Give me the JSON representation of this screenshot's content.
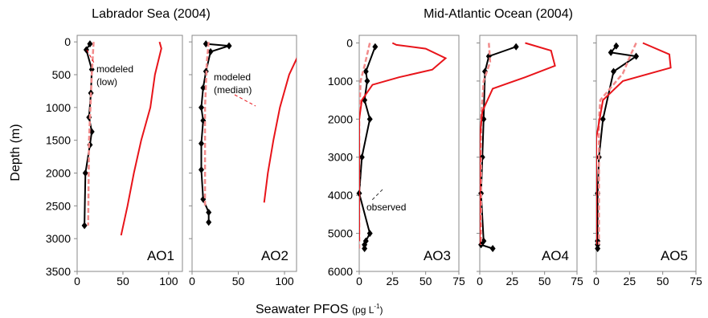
{
  "chart_data": [
    {
      "type": "line",
      "label": "AO1",
      "xlim": [
        0,
        115
      ],
      "ylim": [
        -100,
        3500
      ],
      "y_inverted": true,
      "xticks": [
        0,
        50,
        100
      ],
      "yticks": [
        0,
        500,
        1000,
        1500,
        2000,
        2500,
        3000,
        3500
      ],
      "show_yticklabels": true,
      "series": [
        {
          "name": "observed",
          "color": "#000000",
          "markers": true,
          "x": [
            14,
            10,
            16,
            15,
            13,
            16,
            14,
            9,
            8
          ],
          "y": [
            30,
            120,
            420,
            780,
            1150,
            1370,
            1570,
            2000,
            2800
          ]
        },
        {
          "name": "modeled (low)",
          "color": "#f28b8b",
          "dashed": true,
          "x": [
            18,
            16,
            13,
            12
          ],
          "y": [
            0,
            500,
            1500,
            2800
          ]
        },
        {
          "name": "modeled (median)",
          "color": "#e8141a",
          "x": [
            90,
            92,
            85,
            80,
            70,
            62,
            55,
            48
          ],
          "y": [
            0,
            100,
            500,
            1000,
            1500,
            2000,
            2500,
            2950
          ]
        }
      ],
      "annotation": {
        "lines": [
          "modeled",
          "(low)"
        ],
        "color": "#e8141a"
      }
    },
    {
      "type": "line",
      "label": "AO2",
      "xlim": [
        0,
        113
      ],
      "ylim": [
        -100,
        3500
      ],
      "y_inverted": true,
      "xticks": [
        0,
        50,
        100
      ],
      "yticks": [
        0,
        500,
        1000,
        1500,
        2000,
        2500,
        3000,
        3500
      ],
      "show_yticklabels": false,
      "series": [
        {
          "name": "observed",
          "color": "#000000",
          "markers": true,
          "x": [
            15,
            40,
            20,
            15,
            12,
            10,
            12,
            10,
            10,
            12,
            18,
            18
          ],
          "y": [
            30,
            60,
            150,
            450,
            700,
            1000,
            1200,
            1550,
            1950,
            2400,
            2600,
            2750
          ]
        },
        {
          "name": "modeled (low)",
          "color": "#f28b8b",
          "dashed": true,
          "x": [
            18,
            16,
            14,
            14
          ],
          "y": [
            0,
            300,
            1000,
            2500
          ]
        },
        {
          "name": "modeled (median)",
          "color": "#e8141a",
          "x": [
            118,
            115,
            105,
            95,
            88,
            82,
            78
          ],
          "y": [
            0,
            200,
            500,
            1000,
            1500,
            2000,
            2450
          ]
        }
      ],
      "annotation": {
        "lines": [
          "modeled",
          "(median)"
        ],
        "color": "#e8141a"
      }
    },
    {
      "type": "line",
      "label": "AO3",
      "xlim": [
        0,
        75
      ],
      "ylim": [
        -200,
        6000
      ],
      "y_inverted": true,
      "xticks": [
        0,
        25,
        50,
        75
      ],
      "yticks": [
        0,
        1000,
        2000,
        3000,
        4000,
        5000,
        6000
      ],
      "show_yticklabels": true,
      "series": [
        {
          "name": "observed",
          "color": "#000000",
          "markers": true,
          "x": [
            12,
            5,
            6,
            4,
            8,
            2,
            0,
            8,
            5,
            4,
            4
          ],
          "y": [
            100,
            750,
            1000,
            1500,
            2000,
            3000,
            3950,
            5000,
            5200,
            5300,
            5400
          ]
        },
        {
          "name": "modeled (low)",
          "color": "#f28b8b",
          "dashed": true,
          "x": [
            8,
            4,
            1,
            0,
            0
          ],
          "y": [
            0,
            600,
            1000,
            2000,
            5400
          ]
        },
        {
          "name": "modeled (median)",
          "color": "#e8141a",
          "x": [
            25,
            28,
            50,
            65,
            55,
            30,
            10,
            2,
            0,
            0
          ],
          "y": [
            0,
            50,
            150,
            400,
            700,
            900,
            1100,
            1500,
            2000,
            5200
          ]
        }
      ],
      "annotation": {
        "lines": [
          "observed"
        ],
        "color": "#333333"
      }
    },
    {
      "type": "line",
      "label": "AO4",
      "xlim": [
        0,
        75
      ],
      "ylim": [
        -200,
        6000
      ],
      "y_inverted": true,
      "xticks": [
        0,
        25,
        50,
        75
      ],
      "yticks": [
        0,
        1000,
        2000,
        3000,
        4000,
        5000,
        6000
      ],
      "show_yticklabels": false,
      "series": [
        {
          "name": "observed",
          "color": "#000000",
          "markers": true,
          "x": [
            28,
            7,
            4,
            3,
            2,
            1,
            3,
            1,
            10
          ],
          "y": [
            100,
            350,
            750,
            2000,
            3000,
            3950,
            5200,
            5300,
            5400
          ]
        },
        {
          "name": "modeled (low)",
          "color": "#f28b8b",
          "dashed": true,
          "x": [
            7,
            8,
            3,
            1,
            1
          ],
          "y": [
            0,
            500,
            1000,
            2000,
            5300
          ]
        },
        {
          "name": "modeled (median)",
          "color": "#e8141a",
          "x": [
            35,
            55,
            58,
            35,
            10,
            2,
            0,
            0
          ],
          "y": [
            0,
            200,
            600,
            900,
            1200,
            1800,
            2500,
            5300
          ]
        }
      ]
    },
    {
      "type": "line",
      "label": "AO5",
      "xlim": [
        0,
        75
      ],
      "ylim": [
        -200,
        6000
      ],
      "y_inverted": true,
      "xticks": [
        0,
        25,
        50,
        75
      ],
      "yticks": [
        0,
        1000,
        2000,
        3000,
        4000,
        5000,
        6000
      ],
      "show_yticklabels": false,
      "series": [
        {
          "name": "observed",
          "color": "#000000",
          "markers": true,
          "x": [
            15,
            11,
            30,
            13,
            5,
            2,
            1,
            1,
            1,
            1
          ],
          "y": [
            80,
            250,
            350,
            750,
            2000,
            3000,
            3950,
            5200,
            5300,
            5400
          ]
        },
        {
          "name": "modeled (low)",
          "color": "#f28b8b",
          "dashed": true,
          "x": [
            30,
            26,
            20,
            3,
            2,
            2
          ],
          "y": [
            0,
            300,
            800,
            1500,
            2000,
            5300
          ]
        },
        {
          "name": "modeled (median)",
          "color": "#e8141a",
          "x": [
            35,
            55,
            56,
            20,
            5,
            0,
            0
          ],
          "y": [
            0,
            300,
            650,
            1000,
            1500,
            2500,
            5300
          ]
        }
      ]
    }
  ],
  "group_titles": [
    "Labrador Sea (2004)",
    "Mid-Atlantic Ocean (2004)"
  ],
  "y_label": "Depth (m)",
  "x_label": "Seawater PFOS",
  "x_label_unit": [
    "(pg L",
    "-1",
    ")"
  ]
}
